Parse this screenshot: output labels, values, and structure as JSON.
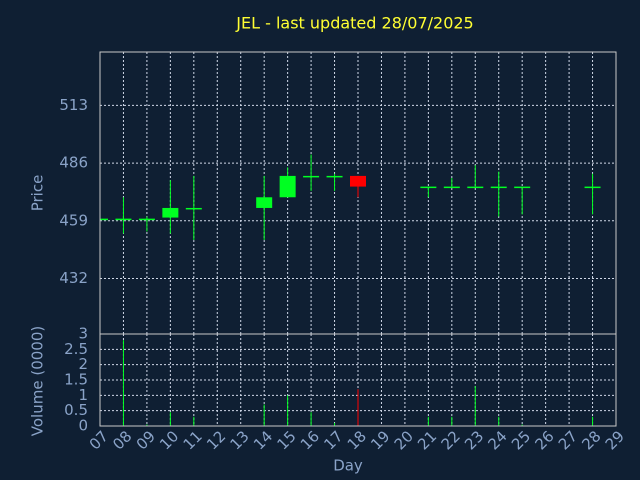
{
  "chart_data": [
    {
      "type": "candlestick",
      "title": "JEL - last updated 28/07/2025",
      "y_label": "Price",
      "x": [
        7,
        8,
        9,
        10,
        11,
        14,
        15,
        16,
        17,
        18,
        21,
        22,
        23,
        24,
        25,
        28
      ],
      "open": [
        460,
        460,
        460,
        460.5,
        465,
        465,
        470,
        480,
        480,
        480,
        475,
        475,
        475,
        475,
        475,
        475
      ],
      "high": [
        460,
        470,
        461,
        478,
        480,
        480,
        484,
        490,
        481,
        480,
        475,
        479,
        485,
        482,
        475,
        481
      ],
      "low": [
        460,
        453,
        454,
        453,
        450,
        450,
        470,
        473,
        473,
        470,
        470,
        475,
        475,
        461,
        462,
        462
      ],
      "close": [
        460,
        460,
        460,
        465,
        465,
        470,
        480,
        480,
        480,
        475,
        475,
        475,
        475,
        475,
        475,
        475
      ],
      "up_color": "#00ff22",
      "down_color": "#ff0000",
      "xlim": [
        7,
        29
      ],
      "ylim": [
        406,
        538
      ],
      "yticks": [
        432,
        459,
        486,
        513
      ],
      "xticks": [
        {
          "value": 7,
          "label": "07"
        },
        {
          "value": 8,
          "label": "08"
        },
        {
          "value": 9,
          "label": "09"
        },
        10,
        11,
        12,
        13,
        14,
        15,
        16,
        17,
        18,
        19,
        20,
        21,
        22,
        23,
        24,
        25,
        26,
        27,
        28,
        29
      ],
      "grid": true
    },
    {
      "type": "bar",
      "y_label": "Volume (0000)",
      "x_label": "Day",
      "x": [
        7,
        8,
        9,
        10,
        11,
        14,
        15,
        16,
        17,
        18,
        21,
        22,
        23,
        24,
        25,
        28
      ],
      "values": [
        0,
        2.8,
        0.05,
        0.45,
        0.3,
        0.7,
        1.0,
        0.45,
        0.1,
        1.2,
        0.3,
        0.3,
        1.3,
        0.3,
        0.05,
        0.3
      ],
      "xlim": [
        7,
        29
      ],
      "ylim": [
        0,
        3
      ],
      "yticks": [
        0,
        0.5,
        1,
        1.5,
        2,
        2.5,
        3
      ],
      "xticks": [
        {
          "value": 7,
          "label": "07"
        },
        {
          "value": 8,
          "label": "08"
        },
        {
          "value": 9,
          "label": "09"
        },
        10,
        11,
        12,
        13,
        14,
        15,
        16,
        17,
        18,
        19,
        20,
        21,
        22,
        23,
        24,
        25,
        26,
        27,
        28,
        29
      ],
      "grid": true
    }
  ]
}
